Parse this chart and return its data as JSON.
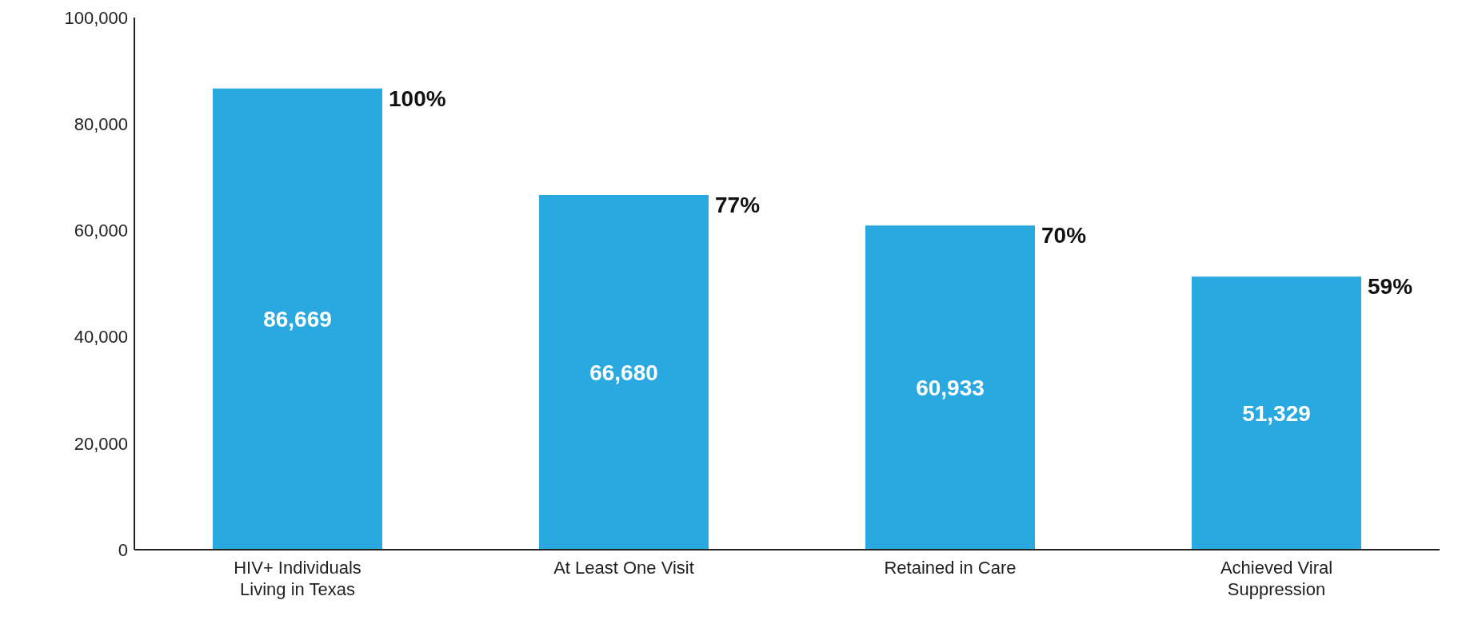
{
  "chart_data": {
    "type": "bar",
    "categories": [
      "HIV+ Individuals Living in Texas",
      "At Least One Visit",
      "Retained in Care",
      "Achieved Viral Suppression"
    ],
    "values": [
      86669,
      66680,
      60933,
      51329
    ],
    "value_labels": [
      "86,669",
      "66,680",
      "60,933",
      "51,329"
    ],
    "color": "#29a9e0",
    "ylim": [
      0,
      100000
    ],
    "yticks": [
      0,
      {
        "value": 20000,
        "label": "20,000"
      },
      {
        "value": 40000,
        "label": "40,000"
      },
      {
        "value": 60000,
        "label": "60,000"
      },
      {
        "value": 80000,
        "label": "80,000"
      },
      {
        "value": 100000,
        "label": "100,000"
      }
    ],
    "grid": false,
    "legend": false,
    "annotations": [
      "100%",
      "77%",
      "70%",
      "59%"
    ]
  }
}
